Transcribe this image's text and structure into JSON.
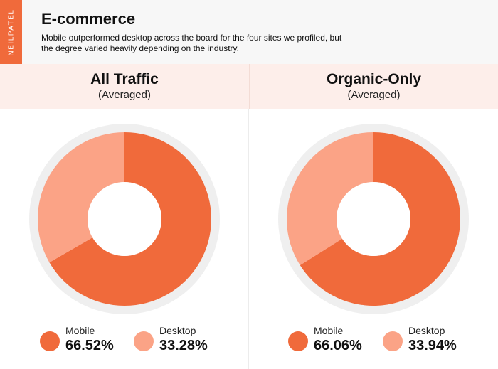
{
  "brand": "NEILPATEL",
  "header": {
    "title": "E-commerce",
    "description": "Mobile outperformed desktop across the board for the four sites we profiled, but the degree varied heavily depending on the industry."
  },
  "colors": {
    "accent": "#f06a3b",
    "mobile": "#f06a3b",
    "desktop": "#fba386",
    "ring": "#efefef",
    "panel_bg": "#fdeeea"
  },
  "panels": [
    {
      "title": "All Traffic",
      "subtitle": "(Averaged)",
      "legend": [
        {
          "label": "Mobile",
          "value_text": "66.52%"
        },
        {
          "label": "Desktop",
          "value_text": "33.28%"
        }
      ]
    },
    {
      "title": "Organic-Only",
      "subtitle": "(Averaged)",
      "legend": [
        {
          "label": "Mobile",
          "value_text": "66.06%"
        },
        {
          "label": "Desktop",
          "value_text": "33.94%"
        }
      ]
    }
  ],
  "chart_data": [
    {
      "type": "pie",
      "title": "All Traffic",
      "subtitle": "(Averaged)",
      "categories": [
        "Mobile",
        "Desktop"
      ],
      "values": [
        66.52,
        33.28
      ],
      "donut": true,
      "legend_position": "bottom"
    },
    {
      "type": "pie",
      "title": "Organic-Only",
      "subtitle": "(Averaged)",
      "categories": [
        "Mobile",
        "Desktop"
      ],
      "values": [
        66.06,
        33.94
      ],
      "donut": true,
      "legend_position": "bottom"
    }
  ]
}
